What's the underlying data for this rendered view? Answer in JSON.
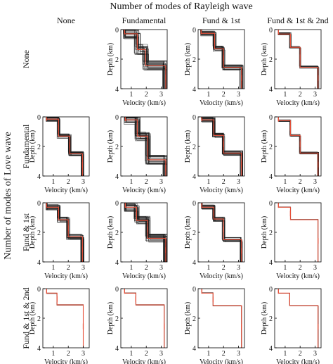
{
  "figure": {
    "title": "Number of modes of Rayleigh wave",
    "row_axis_label": "Number of modes of Love wave",
    "column_labels": [
      "None",
      "Fundamental",
      "Fund & 1st",
      "Fund & 1st & 2nd"
    ],
    "row_labels": [
      "None",
      "Fundamental",
      "Fund & 1st",
      "Fund & 1st & 2nd"
    ]
  },
  "panel_axes": {
    "xlabel": "Velocity (km/s)",
    "ylabel": "Depth (km)",
    "xticks": [
      1,
      2,
      3
    ],
    "yticks": [
      0,
      2,
      4
    ]
  },
  "colors": {
    "ensemble": "#1a1a1a",
    "best_model": "#e8513a",
    "axis": "#000000"
  },
  "chart_data": {
    "type": "line",
    "description_of_grid": "4x4 grid of step profiles; rows = Love wave modes, columns = Rayleigh wave modes",
    "xlim": [
      0.3,
      3.4
    ],
    "ylim": [
      0,
      4
    ],
    "y_inverted": true,
    "panels": [
      {
        "row": 0,
        "col": 0,
        "empty": true
      },
      {
        "row": 0,
        "col": 1,
        "empty": false,
        "ensemble_count": 26,
        "spread": 0.22,
        "best_model": {
          "vs": [
            0.55,
            1.4,
            1.95,
            3.3
          ],
          "interfaces": [
            0.28,
            1.35,
            2.45
          ]
        }
      },
      {
        "row": 0,
        "col": 2,
        "empty": false,
        "ensemble_count": 22,
        "spread": 0.12,
        "best_model": {
          "vs": [
            0.5,
            1.4,
            2.0,
            3.2
          ],
          "interfaces": [
            0.25,
            1.3,
            2.55
          ]
        }
      },
      {
        "row": 0,
        "col": 3,
        "empty": false,
        "ensemble_count": 12,
        "spread": 0.06,
        "best_model": {
          "vs": [
            0.55,
            1.35,
            2.0,
            3.2
          ],
          "interfaces": [
            0.3,
            1.2,
            2.55
          ]
        }
      },
      {
        "row": 1,
        "col": 0,
        "empty": false,
        "ensemble_count": 22,
        "spread": 0.1,
        "best_model": {
          "vs": [
            0.55,
            1.35,
            2.1,
            2.95
          ],
          "interfaces": [
            0.15,
            1.3,
            2.5
          ]
        }
      },
      {
        "row": 1,
        "col": 1,
        "empty": false,
        "ensemble_count": 28,
        "spread": 0.2,
        "best_model": {
          "vs": [
            0.6,
            1.4,
            2.1,
            3.3
          ],
          "interfaces": [
            0.2,
            1.3,
            2.9
          ]
        }
      },
      {
        "row": 1,
        "col": 2,
        "empty": false,
        "ensemble_count": 22,
        "spread": 0.1,
        "best_model": {
          "vs": [
            0.55,
            1.35,
            2.0,
            3.2
          ],
          "interfaces": [
            0.2,
            1.25,
            2.45
          ]
        }
      },
      {
        "row": 1,
        "col": 3,
        "empty": false,
        "ensemble_count": 10,
        "spread": 0.05,
        "best_model": {
          "vs": [
            0.55,
            1.35,
            2.0,
            3.2
          ],
          "interfaces": [
            0.25,
            1.25,
            2.45
          ]
        }
      },
      {
        "row": 2,
        "col": 0,
        "empty": false,
        "ensemble_count": 22,
        "spread": 0.12,
        "best_model": {
          "vs": [
            0.55,
            1.35,
            2.0,
            2.95
          ],
          "interfaces": [
            0.3,
            1.15,
            2.3
          ]
        }
      },
      {
        "row": 2,
        "col": 1,
        "empty": false,
        "ensemble_count": 28,
        "spread": 0.18,
        "best_model": {
          "vs": [
            0.6,
            1.35,
            2.1,
            3.3
          ],
          "interfaces": [
            0.3,
            1.2,
            2.4
          ]
        }
      },
      {
        "row": 2,
        "col": 2,
        "empty": false,
        "ensemble_count": 20,
        "spread": 0.1,
        "best_model": {
          "vs": [
            0.55,
            1.35,
            2.0,
            3.2
          ],
          "interfaces": [
            0.3,
            1.1,
            2.5
          ]
        }
      },
      {
        "row": 2,
        "col": 3,
        "empty": false,
        "ensemble_count": 4,
        "spread": 0.02,
        "best_model": {
          "vs": [
            0.55,
            1.35,
            3.2
          ],
          "interfaces": [
            0.3,
            1.15
          ]
        }
      },
      {
        "row": 3,
        "col": 0,
        "empty": false,
        "ensemble_count": 3,
        "spread": 0.02,
        "best_model": {
          "vs": [
            0.55,
            1.25,
            3.0
          ],
          "interfaces": [
            0.3,
            1.1
          ]
        }
      },
      {
        "row": 3,
        "col": 1,
        "empty": false,
        "ensemble_count": 3,
        "spread": 0.02,
        "best_model": {
          "vs": [
            0.55,
            1.3,
            3.2
          ],
          "interfaces": [
            0.3,
            1.1
          ]
        }
      },
      {
        "row": 3,
        "col": 2,
        "empty": false,
        "ensemble_count": 3,
        "spread": 0.02,
        "best_model": {
          "vs": [
            0.55,
            1.3,
            3.2
          ],
          "interfaces": [
            0.3,
            1.15
          ]
        }
      },
      {
        "row": 3,
        "col": 3,
        "empty": false,
        "ensemble_count": 3,
        "spread": 0.02,
        "best_model": {
          "vs": [
            0.55,
            1.3,
            3.2
          ],
          "interfaces": [
            0.3,
            1.15
          ]
        }
      }
    ]
  }
}
